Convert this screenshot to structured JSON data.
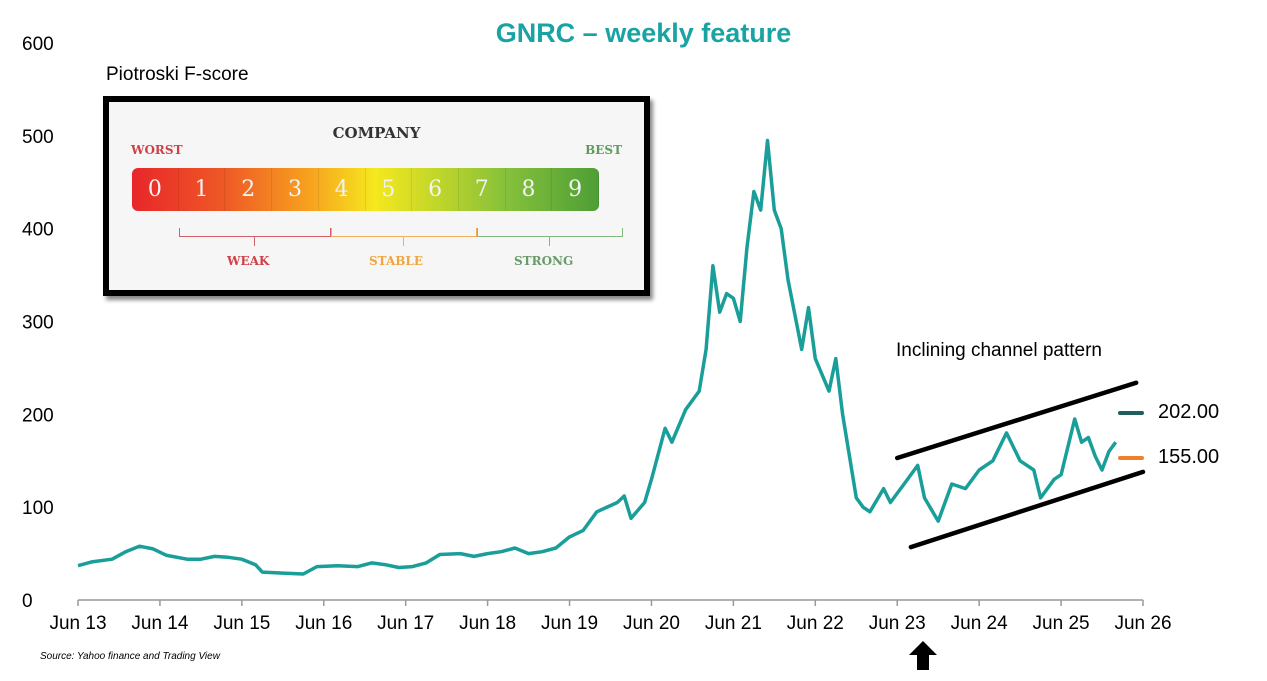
{
  "chart_data": {
    "type": "line",
    "title": "GNRC – weekly feature",
    "xlabel": "",
    "ylabel": "",
    "ylim": [
      0,
      600
    ],
    "yticks": [
      "0",
      "100",
      "200",
      "300",
      "400",
      "500",
      "600"
    ],
    "xticks": [
      "Jun 13",
      "Jun 14",
      "Jun 15",
      "Jun 16",
      "Jun 17",
      "Jun 18",
      "Jun 19",
      "Jun 20",
      "Jun 21",
      "Jun 22",
      "Jun 23",
      "Jun 24",
      "Jun 25",
      "Jun 26"
    ],
    "xlim": [
      "2013-06",
      "2026-06"
    ],
    "grid": false,
    "series": [
      {
        "color": "#1a9e9a",
        "points": [
          [
            "2013-06",
            37
          ],
          [
            "2013-08",
            41
          ],
          [
            "2013-11",
            44
          ],
          [
            "2014-01",
            52
          ],
          [
            "2014-03",
            58
          ],
          [
            "2014-05",
            55
          ],
          [
            "2014-07",
            48
          ],
          [
            "2014-10",
            44
          ],
          [
            "2014-12",
            44
          ],
          [
            "2015-02",
            47
          ],
          [
            "2015-04",
            46
          ],
          [
            "2015-06",
            44
          ],
          [
            "2015-08",
            38
          ],
          [
            "2015-09",
            30
          ],
          [
            "2015-12",
            29
          ],
          [
            "2016-03",
            28
          ],
          [
            "2016-05",
            36
          ],
          [
            "2016-08",
            37
          ],
          [
            "2016-11",
            36
          ],
          [
            "2017-01",
            40
          ],
          [
            "2017-03",
            38
          ],
          [
            "2017-05",
            35
          ],
          [
            "2017-07",
            36
          ],
          [
            "2017-09",
            40
          ],
          [
            "2017-11",
            49
          ],
          [
            "2018-02",
            50
          ],
          [
            "2018-04",
            47
          ],
          [
            "2018-06",
            50
          ],
          [
            "2018-08",
            52
          ],
          [
            "2018-10",
            56
          ],
          [
            "2018-12",
            50
          ],
          [
            "2019-02",
            52
          ],
          [
            "2019-04",
            56
          ],
          [
            "2019-06",
            68
          ],
          [
            "2019-08",
            75
          ],
          [
            "2019-10",
            95
          ],
          [
            "2020-01",
            105
          ],
          [
            "2020-02",
            112
          ],
          [
            "2020-03",
            88
          ],
          [
            "2020-05",
            105
          ],
          [
            "2020-06",
            130
          ],
          [
            "2020-08",
            185
          ],
          [
            "2020-09",
            170
          ],
          [
            "2020-11",
            205
          ],
          [
            "2021-01",
            225
          ],
          [
            "2021-02",
            270
          ],
          [
            "2021-03",
            360
          ],
          [
            "2021-04",
            310
          ],
          [
            "2021-05",
            330
          ],
          [
            "2021-06",
            325
          ],
          [
            "2021-07",
            300
          ],
          [
            "2021-08",
            380
          ],
          [
            "2021-09",
            440
          ],
          [
            "2021-10",
            420
          ],
          [
            "2021-11",
            495
          ],
          [
            "2021-12",
            420
          ],
          [
            "2022-01",
            400
          ],
          [
            "2022-02",
            345
          ],
          [
            "2022-04",
            270
          ],
          [
            "2022-05",
            315
          ],
          [
            "2022-06",
            260
          ],
          [
            "2022-08",
            225
          ],
          [
            "2022-09",
            260
          ],
          [
            "2022-10",
            200
          ],
          [
            "2022-12",
            110
          ],
          [
            "2023-01",
            100
          ],
          [
            "2023-02",
            95
          ],
          [
            "2023-04",
            120
          ],
          [
            "2023-05",
            105
          ],
          [
            "2023-07",
            125
          ],
          [
            "2023-09",
            145
          ],
          [
            "2023-10",
            110
          ],
          [
            "2023-12",
            85
          ],
          [
            "2024-02",
            125
          ],
          [
            "2024-04",
            120
          ],
          [
            "2024-06",
            140
          ],
          [
            "2024-08",
            150
          ],
          [
            "2024-10",
            180
          ],
          [
            "2024-12",
            150
          ],
          [
            "2025-02",
            140
          ],
          [
            "2025-03",
            110
          ],
          [
            "2025-05",
            130
          ],
          [
            "2025-06",
            135
          ],
          [
            "2025-08",
            195
          ],
          [
            "2025-09",
            170
          ],
          [
            "2025-10",
            175
          ],
          [
            "2025-11",
            155
          ],
          [
            "2025-12",
            140
          ],
          [
            "2026-01",
            160
          ],
          [
            "2026-02",
            170
          ]
        ]
      }
    ],
    "channel_lines": [
      {
        "from": [
          "2023-06",
          153
        ],
        "to": [
          "2026-05",
          234
        ]
      },
      {
        "from": [
          "2023-08",
          57
        ],
        "to": [
          "2026-06",
          138
        ]
      }
    ],
    "legend": [
      {
        "label": "202.00",
        "color": "#1e5e5c"
      },
      {
        "label": "155.00",
        "color": "#f07f2a"
      }
    ],
    "annotations": [
      "Inclining channel pattern"
    ],
    "source": "Source: Yahoo finance and Trading View"
  },
  "fscore": {
    "label": "Piotroski F-score",
    "company": "COMPANY",
    "worst": "WORST",
    "best": "BEST",
    "scores": [
      "0",
      "1",
      "2",
      "3",
      "4",
      "5",
      "6",
      "7",
      "8",
      "9"
    ],
    "groups": [
      "WEAK",
      "STABLE",
      "STRONG"
    ],
    "group_colors": [
      "#d0404a",
      "#f0a540",
      "#6aaa6a"
    ]
  }
}
